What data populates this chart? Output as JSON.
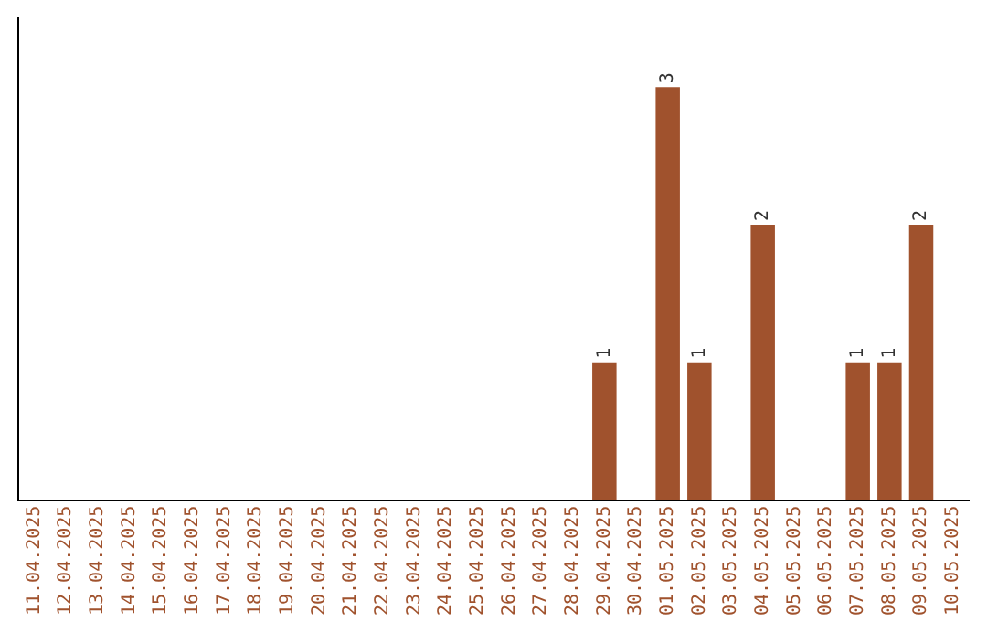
{
  "chart_data": {
    "type": "bar",
    "categories": [
      "11.04.2025",
      "12.04.2025",
      "13.04.2025",
      "14.04.2025",
      "15.04.2025",
      "16.04.2025",
      "17.04.2025",
      "18.04.2025",
      "19.04.2025",
      "20.04.2025",
      "21.04.2025",
      "22.04.2025",
      "23.04.2025",
      "24.04.2025",
      "25.04.2025",
      "26.04.2025",
      "27.04.2025",
      "28.04.2025",
      "29.04.2025",
      "30.04.2025",
      "01.05.2025",
      "02.05.2025",
      "03.05.2025",
      "04.05.2025",
      "05.05.2025",
      "06.05.2025",
      "07.05.2025",
      "08.05.2025",
      "09.05.2025",
      "10.05.2025"
    ],
    "values": [
      null,
      null,
      null,
      null,
      null,
      null,
      null,
      null,
      null,
      null,
      null,
      null,
      null,
      null,
      null,
      null,
      null,
      null,
      1,
      null,
      3,
      1,
      null,
      2,
      null,
      null,
      1,
      1,
      2,
      null
    ],
    "value_labels": [
      null,
      null,
      null,
      null,
      null,
      null,
      null,
      null,
      null,
      null,
      null,
      null,
      null,
      null,
      null,
      null,
      null,
      null,
      "1",
      null,
      "3",
      "1",
      null,
      "2",
      null,
      null,
      "1",
      "1",
      "2",
      null
    ],
    "color": "#a0522d",
    "grid": false,
    "legend": false,
    "tick_labels": "x"
  }
}
